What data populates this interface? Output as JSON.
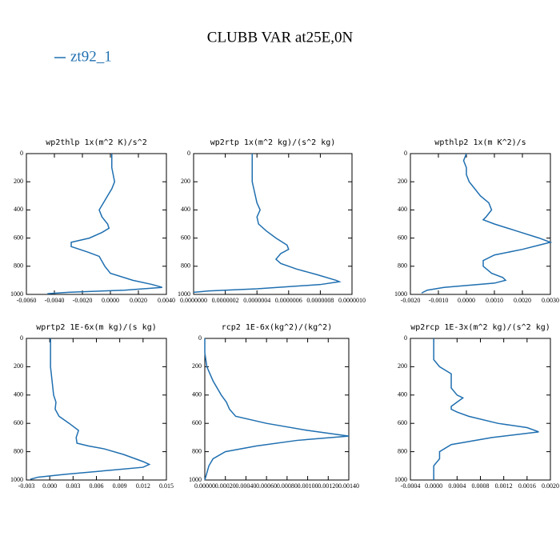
{
  "title": "CLUBB VAR at25E,0N",
  "legend": {
    "label": "zt92_1",
    "color": "#1f6fb0"
  },
  "chart_data": [
    {
      "type": "line",
      "title": "wp2thlp  1x(m^2 K)/s^2",
      "color": "#1f6fb0",
      "levels": [
        0,
        100,
        200,
        250,
        300,
        350,
        400,
        450,
        500,
        530,
        560,
        600,
        630,
        660,
        700,
        730,
        800,
        850,
        900,
        930,
        950,
        970,
        985,
        995
      ],
      "values": [
        0.0001,
        0.0001,
        0.0003,
        0.0001,
        -0.0002,
        -0.0005,
        -0.0008,
        -0.0006,
        -0.0002,
        -0.0001,
        -0.0006,
        -0.0015,
        -0.0028,
        -0.0028,
        -0.0016,
        -0.0008,
        -0.0004,
        0.0,
        0.0016,
        0.003,
        0.0037,
        0.001,
        -0.003,
        -0.0045
      ],
      "xlim": [
        -0.006,
        0.004
      ],
      "xticks": [
        {
          "value": -0.006,
          "label": "-0.0060"
        },
        {
          "value": -0.004,
          "label": "-0.0040"
        },
        {
          "value": -0.002,
          "label": "-0.0020"
        },
        {
          "value": 0,
          "label": "0.0000"
        },
        {
          "value": 0.002,
          "label": "0.0020"
        },
        {
          "value": 0.004,
          "label": "0.0040"
        }
      ],
      "ylim": [
        1000,
        0
      ],
      "yticks": [
        0,
        200,
        400,
        600,
        800,
        1000
      ]
    },
    {
      "type": "line",
      "title": "wp2rtp  1x(m^2 kg)/(s^2 kg)",
      "color": "#1f6fb0",
      "levels": [
        0,
        200,
        250,
        300,
        350,
        400,
        450,
        500,
        550,
        600,
        650,
        680,
        710,
        750,
        780,
        820,
        860,
        900,
        910,
        930,
        960,
        975,
        985
      ],
      "values": [
        3.7e-07,
        3.7e-07,
        3.8e-07,
        3.9e-07,
        4e-07,
        4.2e-07,
        4e-07,
        4.1e-07,
        4.6e-07,
        5.2e-07,
        5.9e-07,
        6e-07,
        5.5e-07,
        5.2e-07,
        5.5e-07,
        6.5e-07,
        7.8e-07,
        9e-07,
        9.2e-07,
        8e-07,
        4e-07,
        1e-07,
        0
      ],
      "xlim": [
        0,
        1e-06
      ],
      "xticks": [
        {
          "value": 0,
          "label": "0.0000000"
        },
        {
          "value": 2e-07,
          "label": "0.0000002"
        },
        {
          "value": 4e-07,
          "label": "0.0000004"
        },
        {
          "value": 6e-07,
          "label": "0.0000006"
        },
        {
          "value": 8e-07,
          "label": "0.0000008"
        },
        {
          "value": 1e-06,
          "label": "0.0000010"
        }
      ],
      "ylim": [
        1000,
        0
      ],
      "yticks": [
        0,
        200,
        400,
        600,
        800,
        1000
      ]
    },
    {
      "type": "line",
      "title": "wpthlp2  1x(m K^2)/s",
      "color": "#1f6fb0",
      "levels": [
        0,
        50,
        100,
        150,
        200,
        250,
        300,
        350,
        400,
        450,
        470,
        500,
        550,
        600,
        630,
        650,
        680,
        720,
        760,
        800,
        850,
        880,
        900,
        920,
        950,
        970,
        990
      ],
      "values": [
        0,
        -0.0001,
        0,
        0,
        0.0001,
        0.0003,
        0.0005,
        0.0008,
        0.0009,
        0.0007,
        0.0006,
        0.001,
        0.0018,
        0.0026,
        0.003,
        0.0026,
        0.002,
        0.001,
        0.0006,
        0.0006,
        0.0009,
        0.0013,
        0.0014,
        0.001,
        -0.0008,
        -0.0014,
        -0.0016
      ],
      "xlim": [
        -0.002,
        0.003
      ],
      "xticks": [
        {
          "value": -0.002,
          "label": "-0.0020"
        },
        {
          "value": -0.001,
          "label": "-0.0010"
        },
        {
          "value": 0,
          "label": "0.0000"
        },
        {
          "value": 0.001,
          "label": "0.0010"
        },
        {
          "value": 0.002,
          "label": "0.0020"
        },
        {
          "value": 0.003,
          "label": "0.0030"
        }
      ],
      "ylim": [
        1000,
        0
      ],
      "yticks": [
        0,
        200,
        400,
        600,
        800,
        1000
      ]
    },
    {
      "type": "line",
      "title": "wprtp2  1E-6x(m kg)/(s kg)",
      "color": "#1f6fb0",
      "levels": [
        0,
        200,
        300,
        400,
        450,
        500,
        550,
        600,
        650,
        700,
        740,
        760,
        780,
        820,
        870,
        890,
        910,
        930,
        960,
        980,
        995
      ],
      "values": [
        0.0001,
        0.0001,
        0.0003,
        0.0005,
        0.0008,
        0.0007,
        0.0012,
        0.0025,
        0.0037,
        0.0034,
        0.0035,
        0.005,
        0.007,
        0.0095,
        0.012,
        0.0128,
        0.012,
        0.008,
        0.002,
        -0.0015,
        -0.0025
      ],
      "xlim": [
        -0.003,
        0.015
      ],
      "xticks": [
        -0.003,
        {
          "value": 0,
          "label": "0.000"
        },
        0.003,
        0.006,
        0.009,
        0.012,
        0.015
      ],
      "ylim": [
        1000,
        0
      ],
      "yticks": [
        0,
        200,
        400,
        600,
        800,
        1000
      ]
    },
    {
      "type": "line",
      "title": "rcp2  1E-6x(kg^2)/(kg^2)",
      "color": "#1f6fb0",
      "levels": [
        0,
        100,
        200,
        300,
        400,
        450,
        500,
        550,
        600,
        650,
        690,
        720,
        760,
        800,
        850,
        900,
        950,
        1000
      ],
      "values": [
        0,
        0,
        2e-05,
        8e-05,
        0.00016,
        0.00021,
        0.00024,
        0.0003,
        0.0006,
        0.001,
        0.0014,
        0.0009,
        0.0005,
        0.0002,
        8e-05,
        4e-05,
        2e-05,
        0
      ],
      "xlim": [
        0,
        0.0014
      ],
      "xticks": [
        {
          "value": 0,
          "label": "0.00000"
        },
        {
          "value": 0.0002,
          "label": "0.00020"
        },
        {
          "value": 0.0004,
          "label": "0.00040"
        },
        {
          "value": 0.0006,
          "label": "0.00060"
        },
        {
          "value": 0.0008,
          "label": "0.00080"
        },
        {
          "value": 0.001,
          "label": "0.00100"
        },
        {
          "value": 0.0012,
          "label": "0.00120"
        },
        {
          "value": 0.0014,
          "label": "0.00140"
        }
      ],
      "ylim": [
        1000,
        0
      ],
      "yticks": [
        0,
        200,
        400,
        600,
        800,
        1000
      ]
    },
    {
      "type": "line",
      "title": "wp2rcp  1E-3x(m^2 kg)/(s^2 kg)",
      "color": "#1f6fb0",
      "levels": [
        0,
        150,
        200,
        250,
        300,
        350,
        400,
        420,
        450,
        480,
        500,
        520,
        550,
        600,
        630,
        660,
        700,
        750,
        800,
        850,
        900,
        1000
      ],
      "values": [
        0,
        0,
        0.0001,
        0.0003,
        0.0003,
        0.0003,
        0.0004,
        0.0005,
        0.0004,
        0.0003,
        0.0003,
        0.0004,
        0.0006,
        0.0011,
        0.0016,
        0.0018,
        0.001,
        0.0003,
        0.0001,
        0.0001,
        0,
        0
      ],
      "xlim": [
        -0.0004,
        0.002
      ],
      "xticks": [
        -0.0004,
        {
          "value": 0,
          "label": "0.0000"
        },
        0.0004,
        0.0008,
        0.0012,
        0.0016,
        {
          "value": 0.002,
          "label": "0.0020"
        }
      ],
      "ylim": [
        1000,
        0
      ],
      "yticks": [
        0,
        200,
        400,
        600,
        800,
        1000
      ]
    }
  ]
}
